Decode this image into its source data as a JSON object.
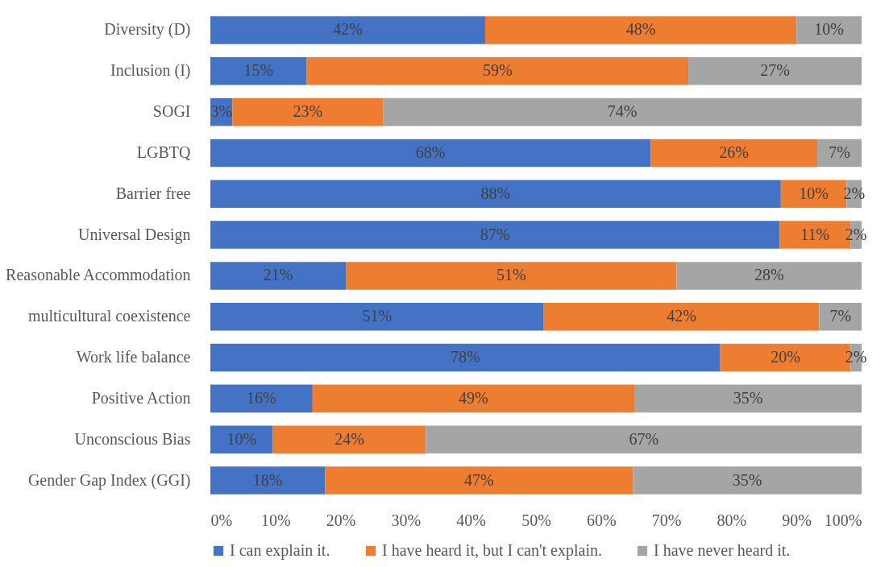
{
  "chart_data": {
    "type": "bar",
    "orientation": "horizontal",
    "stacked": true,
    "categories": [
      "Diversity (D)",
      "Inclusion (I)",
      "SOGI",
      "LGBTQ",
      "Barrier free",
      "Universal Design",
      "Reasonable Accommodation",
      "multicultural coexistence",
      "Work life balance",
      "Positive Action",
      "Unconscious Bias",
      "Gender Gap Index (GGI)"
    ],
    "series": [
      {
        "name": "I can explain it.",
        "color": "#4472c4",
        "values": [
          42.2,
          14.8,
          3.4,
          67.6,
          87.6,
          87.4,
          20.8,
          51.2,
          78.3,
          15.7,
          9.6,
          17.6
        ],
        "value_labels": [
          "42%",
          "15%",
          "3%",
          "68%",
          "88%",
          "87%",
          "21%",
          "51%",
          "78%",
          "16%",
          "10%",
          "18%"
        ]
      },
      {
        "name": "I have heard it, but I can't explain.",
        "color": "#ed7d31",
        "values": [
          47.8,
          58.6,
          23.1,
          25.6,
          10.1,
          10.9,
          50.8,
          42.3,
          20.0,
          49.4,
          23.5,
          47.3
        ],
        "value_labels": [
          "48%",
          "59%",
          "23%",
          "26%",
          "10%",
          "11%",
          "51%",
          "42%",
          "20%",
          "49%",
          "24%",
          "47%"
        ]
      },
      {
        "name": "I have never heard it.",
        "color": "#a5a5a5",
        "values": [
          10.0,
          26.6,
          73.5,
          6.8,
          2.3,
          1.7,
          28.4,
          6.5,
          1.7,
          34.9,
          66.9,
          35.1
        ],
        "value_labels": [
          "10%",
          "27%",
          "74%",
          "7%",
          "2%",
          "2%",
          "28%",
          "7%",
          "2%",
          "35%",
          "67%",
          "35%"
        ]
      }
    ],
    "xlim": [
      0,
      100
    ],
    "xticks": [
      {
        "value": 0,
        "label": "0%"
      },
      {
        "value": 10,
        "label": "10%"
      },
      {
        "value": 20,
        "label": "20%"
      },
      {
        "value": 30,
        "label": "30%"
      },
      {
        "value": 40,
        "label": "40%"
      },
      {
        "value": 50,
        "label": "50%"
      },
      {
        "value": 60,
        "label": "60%"
      },
      {
        "value": 70,
        "label": "70%"
      },
      {
        "value": 80,
        "label": "80%"
      },
      {
        "value": 90,
        "label": "90%"
      },
      {
        "value": 100,
        "label": "100%"
      }
    ],
    "legend": "bottom",
    "grid": false
  }
}
